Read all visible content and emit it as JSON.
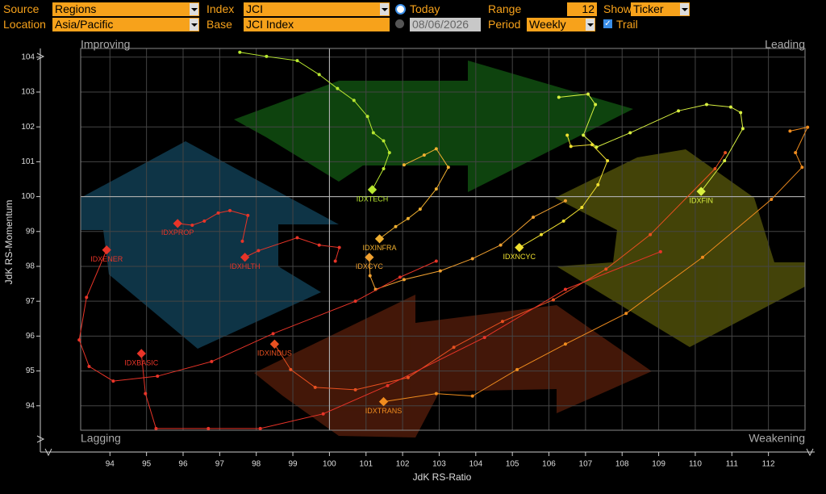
{
  "controls": {
    "source": {
      "label": "Source",
      "value": "Regions"
    },
    "index": {
      "label": "Index",
      "value": "JCI"
    },
    "today": {
      "label": "Today"
    },
    "range": {
      "label": "Range",
      "value": "12"
    },
    "show": {
      "label": "Show",
      "value": "Ticker"
    },
    "location": {
      "label": "Location",
      "value": "Asia/Pacific"
    },
    "base": {
      "label": "Base",
      "value": "JCI Index"
    },
    "date": {
      "value": "08/06/2026"
    },
    "period": {
      "label": "Period",
      "value": "Weekly"
    },
    "trail": {
      "label": "Trail"
    }
  },
  "chart_data": {
    "type": "scatter",
    "xlabel": "JdK RS-Ratio",
    "ylabel": "JdK RS-Momentum",
    "quadrants": [
      "Improving",
      "Leading",
      "Lagging",
      "Weakening"
    ],
    "xlim": [
      93.2,
      113.0
    ],
    "ylim": [
      93.3,
      104.25
    ],
    "center": [
      100,
      100
    ],
    "xticks": [
      94,
      95,
      96,
      97,
      98,
      99,
      100,
      101,
      102,
      103,
      104,
      105,
      106,
      107,
      108,
      109,
      110,
      111,
      112
    ],
    "yticks": [
      94,
      95,
      96,
      97,
      98,
      99,
      100,
      101,
      102,
      103,
      104
    ],
    "grid": true,
    "series": [
      {
        "name": "IDXTECH",
        "color": "#b8e830",
        "x": [
          97.55,
          98.28,
          99.12,
          99.72,
          100.22,
          100.67,
          101.04,
          101.2,
          101.48,
          101.64,
          101.48,
          101.17
        ],
        "y": [
          104.14,
          104.02,
          103.9,
          103.5,
          103.1,
          102.76,
          102.3,
          101.83,
          101.6,
          101.26,
          100.8,
          100.2
        ]
      },
      {
        "name": "IDXFIN",
        "color": "#d8f040",
        "x": [
          106.27,
          107.07,
          107.27,
          106.94,
          107.3,
          108.22,
          109.54,
          110.31,
          110.97,
          111.24,
          111.3,
          110.8,
          110.16
        ],
        "y": [
          102.85,
          102.94,
          102.64,
          101.76,
          101.42,
          101.83,
          102.46,
          102.64,
          102.57,
          102.41,
          101.95,
          101.03,
          100.15
        ]
      },
      {
        "name": "IDXNCYC",
        "color": "#f0e030",
        "x": [
          106.5,
          106.6,
          107.18,
          107.6,
          107.34,
          106.9,
          106.4,
          105.79,
          105.19
        ],
        "y": [
          101.76,
          101.44,
          101.49,
          101.03,
          100.34,
          99.69,
          99.3,
          98.91,
          98.54
        ]
      },
      {
        "name": "IDXINFRA",
        "color": "#f0b030",
        "x": [
          102.04,
          102.59,
          102.92,
          103.25,
          102.92,
          102.48,
          102.15,
          101.81,
          101.37
        ],
        "y": [
          100.91,
          101.19,
          101.37,
          100.84,
          100.22,
          99.64,
          99.37,
          99.14,
          98.79
        ]
      },
      {
        "name": "IDXCYC",
        "color": "#f0a030",
        "x": [
          106.45,
          105.57,
          104.68,
          103.91,
          103.03,
          102.04,
          101.26,
          101.11,
          101.09
        ],
        "y": [
          99.88,
          99.41,
          98.61,
          98.22,
          97.87,
          97.62,
          97.34,
          97.73,
          98.26
        ]
      },
      {
        "name": "IDXTRANS",
        "color": "#f08c1e",
        "x": [
          112.59,
          113.07,
          112.74,
          112.92,
          112.08,
          110.2,
          108.11,
          106.45,
          105.13,
          103.91,
          102.92,
          101.48
        ],
        "y": [
          101.88,
          101.99,
          101.26,
          100.84,
          99.92,
          98.26,
          96.65,
          95.77,
          95.04,
          94.28,
          94.35,
          94.12
        ]
      },
      {
        "name": "IDXINDUS",
        "color": "#e85020",
        "x": [
          110.82,
          110.54,
          108.77,
          107.56,
          106.12,
          104.73,
          103.4,
          102.15,
          100.71,
          99.61,
          98.94,
          98.5
        ],
        "y": [
          101.26,
          100.8,
          98.91,
          97.92,
          97.04,
          96.42,
          95.68,
          94.81,
          94.46,
          94.53,
          95.04,
          95.77
        ]
      },
      {
        "name": "IDXBASIC",
        "color": "#e83428",
        "x": [
          109.05,
          106.45,
          104.24,
          101.59,
          99.83,
          98.11,
          96.69,
          95.26,
          94.97,
          94.86
        ],
        "y": [
          98.42,
          97.34,
          95.96,
          94.58,
          93.77,
          93.35,
          93.35,
          93.35,
          94.35,
          95.5
        ]
      },
      {
        "name": "IDXENER",
        "color": "#e83428",
        "x": [
          102.92,
          101.93,
          100.71,
          98.46,
          96.78,
          95.3,
          94.09,
          93.43,
          93.16,
          93.36,
          93.91
        ],
        "y": [
          98.15,
          97.69,
          97.0,
          96.07,
          95.27,
          94.85,
          94.71,
          95.13,
          95.89,
          97.11,
          98.47
        ]
      },
      {
        "name": "IDXHLTH",
        "color": "#e83428",
        "x": [
          100.16,
          100.27,
          99.72,
          99.12,
          98.06,
          97.69
        ],
        "y": [
          98.15,
          98.54,
          98.61,
          98.82,
          98.45,
          98.26
        ]
      },
      {
        "name": "IDXPROP",
        "color": "#e83428",
        "x": [
          97.62,
          97.77,
          97.28,
          96.96,
          96.58,
          96.25,
          95.85
        ],
        "y": [
          98.72,
          99.46,
          99.6,
          99.53,
          99.3,
          99.18,
          99.23
        ]
      }
    ]
  }
}
